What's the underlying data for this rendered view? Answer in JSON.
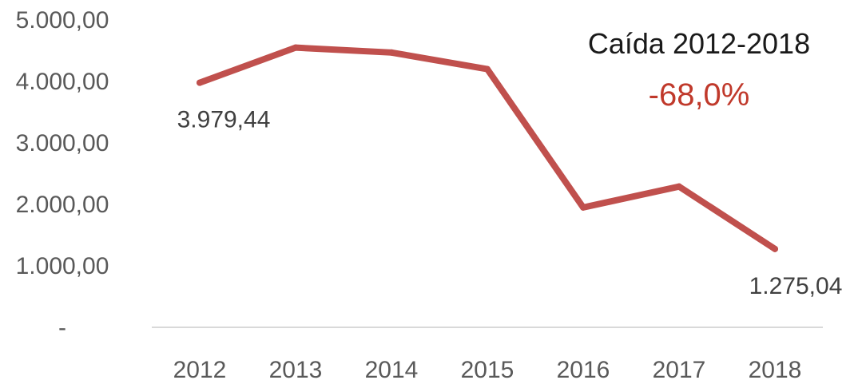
{
  "chart_data": {
    "type": "line",
    "categories": [
      "2012",
      "2013",
      "2014",
      "2015",
      "2016",
      "2017",
      "2018"
    ],
    "series": [
      {
        "values": [
          3979.44,
          4550,
          4470,
          4200,
          1950,
          2290,
          1275.04
        ]
      }
    ],
    "ylim": [
      0,
      5000
    ],
    "y_ticks": [
      {
        "value": 5000,
        "label": "5.000,00"
      },
      {
        "value": 4000,
        "label": "4.000,00"
      },
      {
        "value": 3000,
        "label": "3.000,00"
      },
      {
        "value": 2000,
        "label": "2.000,00"
      },
      {
        "value": 1000,
        "label": "1.000,00"
      },
      {
        "value": 0,
        "label": "-"
      }
    ],
    "data_labels": [
      {
        "index": 0,
        "text": "3.979,44"
      },
      {
        "index": 6,
        "text": "1.275,04"
      }
    ],
    "annotation": {
      "title": "Caída 2012-2018",
      "value": "-68,0%"
    },
    "grid": false,
    "legend": "none",
    "colors": {
      "line": "#c0504d",
      "annotation_value": "#c0392b",
      "baseline": "#d9d9d9"
    }
  }
}
